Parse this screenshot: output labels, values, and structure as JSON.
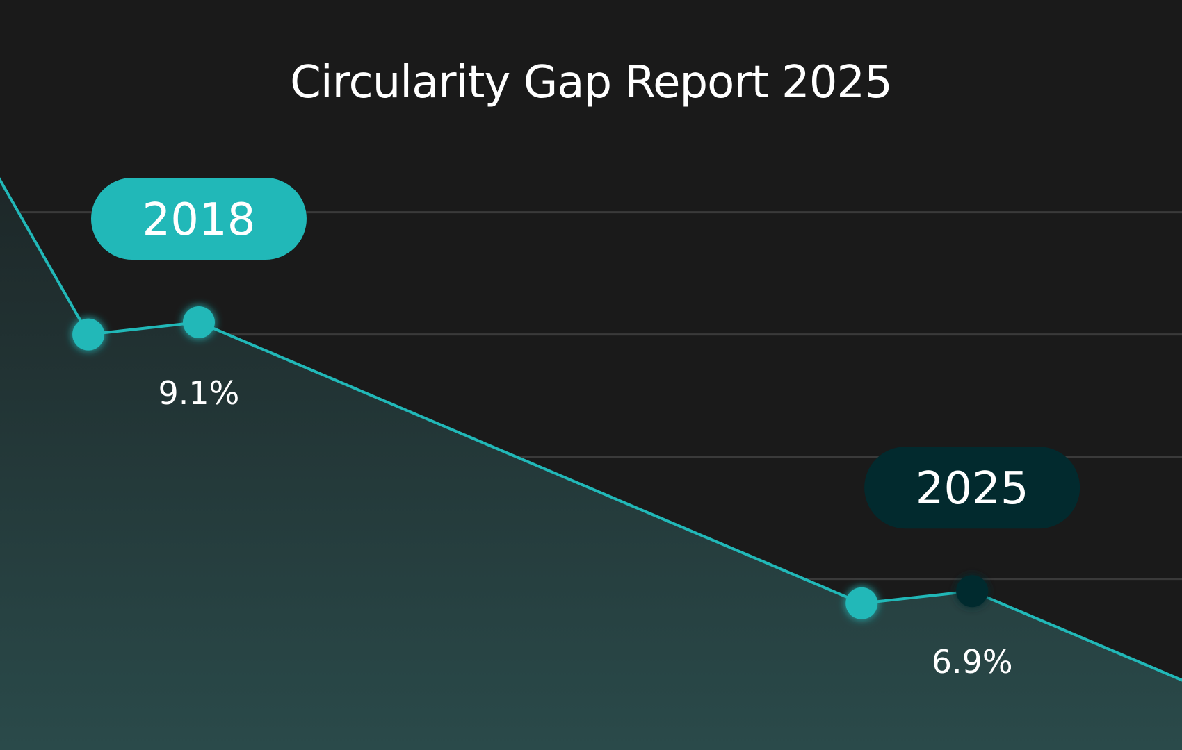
{
  "colors": {
    "background": "#1a1a1a",
    "line": "#21b8b8",
    "accent_dark": "#022a2e",
    "gridline": "#3a3a3a",
    "area_top": "#1c2425",
    "area_bottom": "#2a4a4a",
    "text": "#ffffff"
  },
  "chart_data": {
    "type": "line",
    "title": "Circularity Gap Report 2025",
    "xlabel": "",
    "ylabel": "",
    "grid": true,
    "y_unit": "%",
    "x": [
      2017,
      2018,
      2024,
      2025
    ],
    "values": [
      9.0,
      9.1,
      6.8,
      6.9
    ],
    "x_lim": [
      2016.2,
      2026.9
    ],
    "y_lim": [
      5.6,
      10.6
    ],
    "line_extends_beyond_view": true,
    "highlights": [
      {
        "x": 2018,
        "value": 9.1,
        "year_label": "2018",
        "value_label": "9.1%",
        "style": "teal"
      },
      {
        "x": 2025,
        "value": 6.9,
        "year_label": "2025",
        "value_label": "6.9%",
        "style": "dark"
      }
    ]
  }
}
